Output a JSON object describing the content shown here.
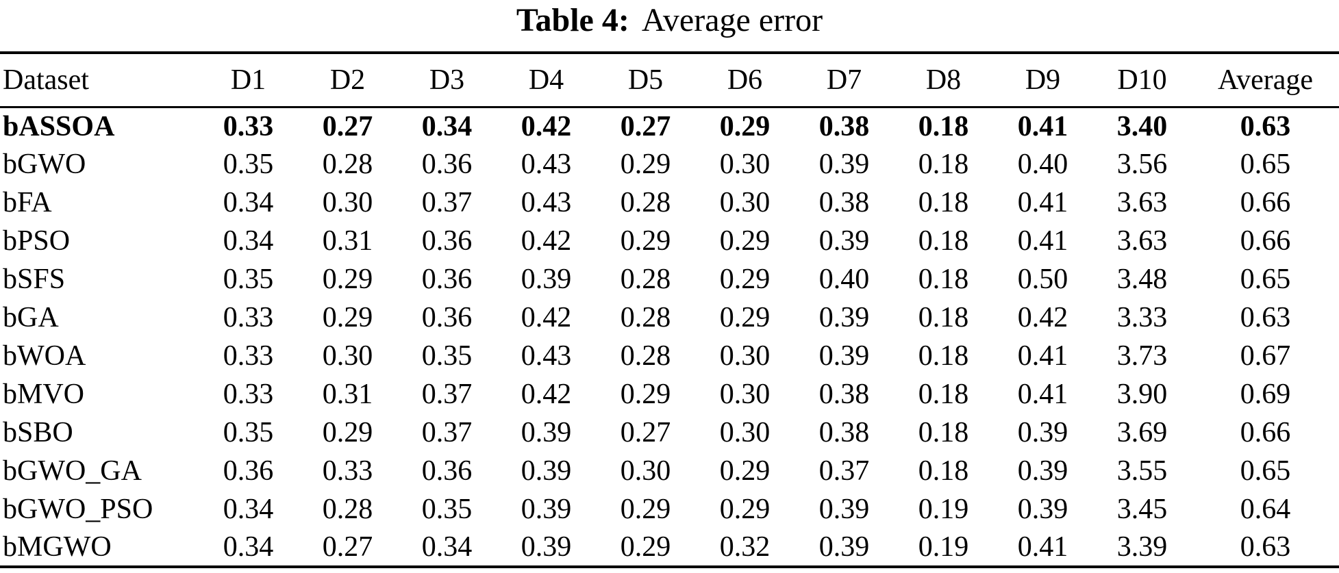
{
  "caption": {
    "label": "Table 4:",
    "text": "Average error"
  },
  "colors": {
    "background": "#ffffff",
    "text": "#000000",
    "rule": "#000000"
  },
  "table": {
    "columns": [
      "Dataset",
      "D1",
      "D2",
      "D3",
      "D4",
      "D5",
      "D6",
      "D7",
      "D8",
      "D9",
      "D10",
      "Average"
    ],
    "rows": [
      {
        "dataset": "bASSOA",
        "bold": true,
        "values": [
          "0.33",
          "0.27",
          "0.34",
          "0.42",
          "0.27",
          "0.29",
          "0.38",
          "0.18",
          "0.41",
          "3.40",
          "0.63"
        ]
      },
      {
        "dataset": "bGWO",
        "bold": false,
        "values": [
          "0.35",
          "0.28",
          "0.36",
          "0.43",
          "0.29",
          "0.30",
          "0.39",
          "0.18",
          "0.40",
          "3.56",
          "0.65"
        ]
      },
      {
        "dataset": "bFA",
        "bold": false,
        "values": [
          "0.34",
          "0.30",
          "0.37",
          "0.43",
          "0.28",
          "0.30",
          "0.38",
          "0.18",
          "0.41",
          "3.63",
          "0.66"
        ]
      },
      {
        "dataset": "bPSO",
        "bold": false,
        "values": [
          "0.34",
          "0.31",
          "0.36",
          "0.42",
          "0.29",
          "0.29",
          "0.39",
          "0.18",
          "0.41",
          "3.63",
          "0.66"
        ]
      },
      {
        "dataset": "bSFS",
        "bold": false,
        "values": [
          "0.35",
          "0.29",
          "0.36",
          "0.39",
          "0.28",
          "0.29",
          "0.40",
          "0.18",
          "0.50",
          "3.48",
          "0.65"
        ]
      },
      {
        "dataset": "bGA",
        "bold": false,
        "values": [
          "0.33",
          "0.29",
          "0.36",
          "0.42",
          "0.28",
          "0.29",
          "0.39",
          "0.18",
          "0.42",
          "3.33",
          "0.63"
        ]
      },
      {
        "dataset": "bWOA",
        "bold": false,
        "values": [
          "0.33",
          "0.30",
          "0.35",
          "0.43",
          "0.28",
          "0.30",
          "0.39",
          "0.18",
          "0.41",
          "3.73",
          "0.67"
        ]
      },
      {
        "dataset": "bMVO",
        "bold": false,
        "values": [
          "0.33",
          "0.31",
          "0.37",
          "0.42",
          "0.29",
          "0.30",
          "0.38",
          "0.18",
          "0.41",
          "3.90",
          "0.69"
        ]
      },
      {
        "dataset": "bSBO",
        "bold": false,
        "values": [
          "0.35",
          "0.29",
          "0.37",
          "0.39",
          "0.27",
          "0.30",
          "0.38",
          "0.18",
          "0.39",
          "3.69",
          "0.66"
        ]
      },
      {
        "dataset": "bGWO_GA",
        "bold": false,
        "values": [
          "0.36",
          "0.33",
          "0.36",
          "0.39",
          "0.30",
          "0.29",
          "0.37",
          "0.18",
          "0.39",
          "3.55",
          "0.65"
        ]
      },
      {
        "dataset": "bGWO_PSO",
        "bold": false,
        "values": [
          "0.34",
          "0.28",
          "0.35",
          "0.39",
          "0.29",
          "0.29",
          "0.39",
          "0.19",
          "0.39",
          "3.45",
          "0.64"
        ]
      },
      {
        "dataset": "bMGWO",
        "bold": false,
        "values": [
          "0.34",
          "0.27",
          "0.34",
          "0.39",
          "0.29",
          "0.32",
          "0.39",
          "0.19",
          "0.41",
          "3.39",
          "0.63"
        ]
      }
    ]
  }
}
